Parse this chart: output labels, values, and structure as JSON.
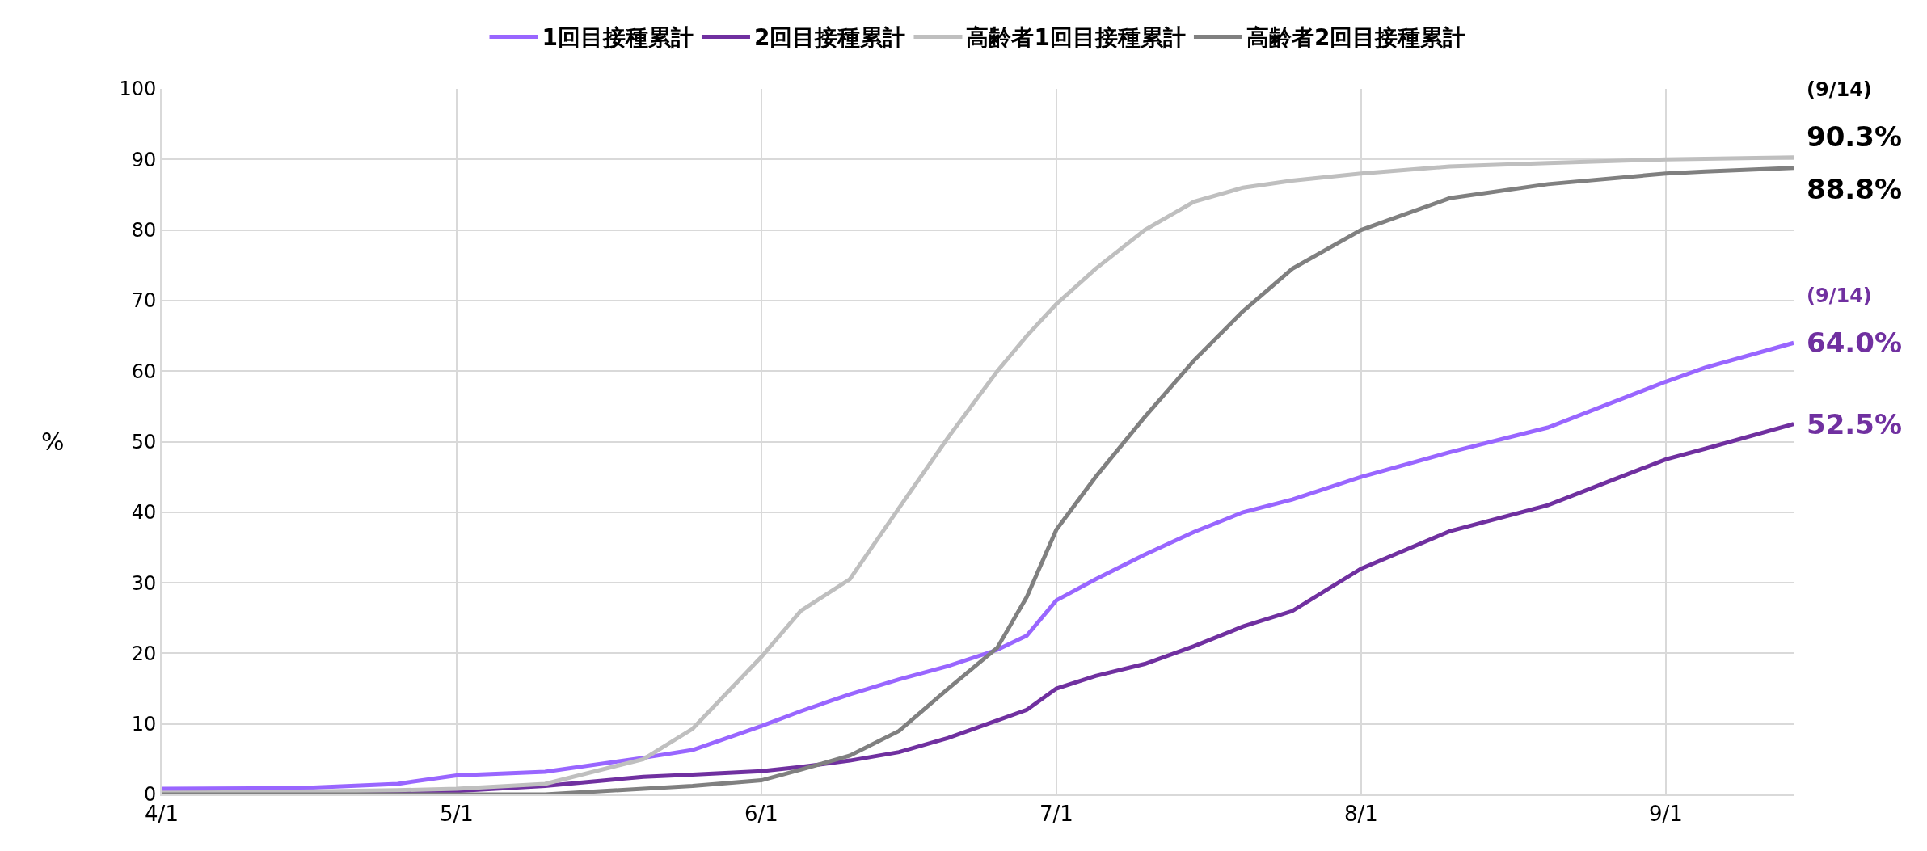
{
  "chart_data": {
    "type": "line",
    "ylabel": "%",
    "x": [
      "--04-01",
      "--04-15",
      "--04-25",
      "--05-01",
      "--05-10",
      "--05-20",
      "--05-25",
      "--06-01",
      "--06-05",
      "--06-10",
      "--06-15",
      "--06-20",
      "--06-25",
      "--06-28",
      "--07-01",
      "--07-05",
      "--07-10",
      "--07-15",
      "--07-20",
      "--07-25",
      "--08-01",
      "--08-10",
      "--08-20",
      "--09-01",
      "--09-05",
      "--09-14"
    ],
    "series": [
      {
        "name": "1回目接種累計",
        "color": "#9966ff",
        "values": [
          0.8,
          0.9,
          1.5,
          2.7,
          3.2,
          5.2,
          6.3,
          9.7,
          11.8,
          14.2,
          16.3,
          18.2,
          20.5,
          22.5,
          27.5,
          30.5,
          34,
          37.2,
          40,
          41.8,
          45,
          48.5,
          52,
          58.5,
          60.5,
          64.0
        ]
      },
      {
        "name": "2回目接種累計",
        "color": "#7030a0",
        "values": [
          0.2,
          0.3,
          0.4,
          0.5,
          1.2,
          2.5,
          2.8,
          3.3,
          3.9,
          4.8,
          6,
          8,
          10.5,
          12,
          15,
          16.8,
          18.5,
          21,
          23.8,
          26,
          32,
          37.3,
          41,
          47.5,
          49,
          52.5
        ]
      },
      {
        "name": "高齢者1回目接種累計",
        "color": "#bfbfbf",
        "values": [
          0.2,
          0.4,
          0.6,
          0.8,
          1.5,
          5,
          9.3,
          19.5,
          26,
          30.5,
          40.6,
          50.6,
          60,
          65,
          69.5,
          74.5,
          80,
          84,
          86,
          87,
          88,
          89,
          89.5,
          90,
          90.1,
          90.3
        ]
      },
      {
        "name": "高齢者2回目接種累計",
        "color": "#808080",
        "values": [
          0,
          0,
          0,
          0,
          0,
          0.8,
          1.2,
          2,
          3.5,
          5.5,
          9,
          15,
          20.8,
          28,
          37.5,
          45,
          53.5,
          61.5,
          68.5,
          74.5,
          80,
          84.5,
          86.5,
          88,
          88.3,
          88.8
        ]
      }
    ],
    "xlim": [
      "--04-01",
      "--09-14"
    ],
    "xticks": [
      {
        "value": "--04-01",
        "label": "4/1"
      },
      {
        "value": "--05-01",
        "label": "5/1"
      },
      {
        "value": "--06-01",
        "label": "6/1"
      },
      {
        "value": "--07-01",
        "label": "7/1"
      },
      {
        "value": "--08-01",
        "label": "8/1"
      },
      {
        "value": "--09-01",
        "label": "9/1"
      }
    ],
    "ylim": [
      0,
      100
    ],
    "yticks": [
      0,
      10,
      20,
      30,
      40,
      50,
      60,
      70,
      80,
      90,
      100
    ],
    "grid": true,
    "legend": "top",
    "marker": "none",
    "line_style": "solid",
    "annotations": [
      "(9/14)",
      {
        "text": "90.3%",
        "x": "--09-14",
        "y": 90.3
      },
      {
        "text": "88.8%",
        "x": "--09-14",
        "y": 88.8
      },
      "(9/14)",
      {
        "text": "64.0%",
        "x": "--09-14",
        "y": 64.0
      },
      {
        "text": "52.5%",
        "x": "--09-14",
        "y": 52.5
      }
    ]
  }
}
